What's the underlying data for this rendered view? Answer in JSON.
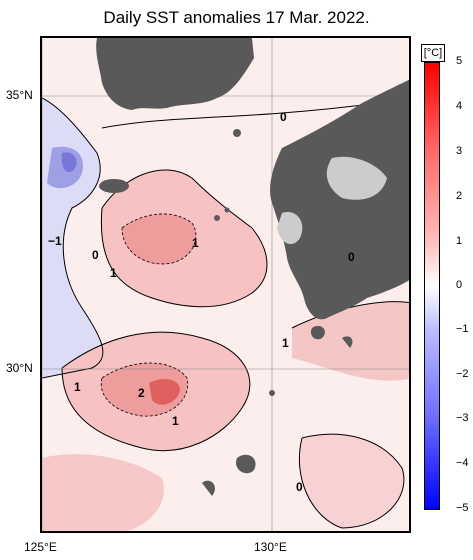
{
  "title": "Daily SST anomalies 17 Mar. 2022.",
  "axes": {
    "lat_labels": [
      "35°N",
      "30°N"
    ],
    "lon_labels": [
      "125°E",
      "130°E"
    ]
  },
  "colorbar": {
    "unit": "[°C]",
    "ticks": [
      "5",
      "4",
      "3",
      "2",
      "1",
      "0",
      "−1",
      "−2",
      "−3",
      "−4",
      "−5"
    ],
    "range": [
      -5,
      5
    ],
    "colors": {
      "max": "#ff0000",
      "mid": "#ffffff",
      "min": "#0000ff"
    }
  },
  "contour_labels": [
    "0",
    "−1",
    "0",
    "1",
    "1",
    "0",
    "1",
    "1",
    "2",
    "1",
    "0"
  ],
  "colors": {
    "land": "#595959",
    "land_light": "#cccccc",
    "warm": "#f7c8c8",
    "warm2": "#ee9a9a",
    "cool": "#c8c8f0",
    "cool2": "#8a8ae0"
  }
}
